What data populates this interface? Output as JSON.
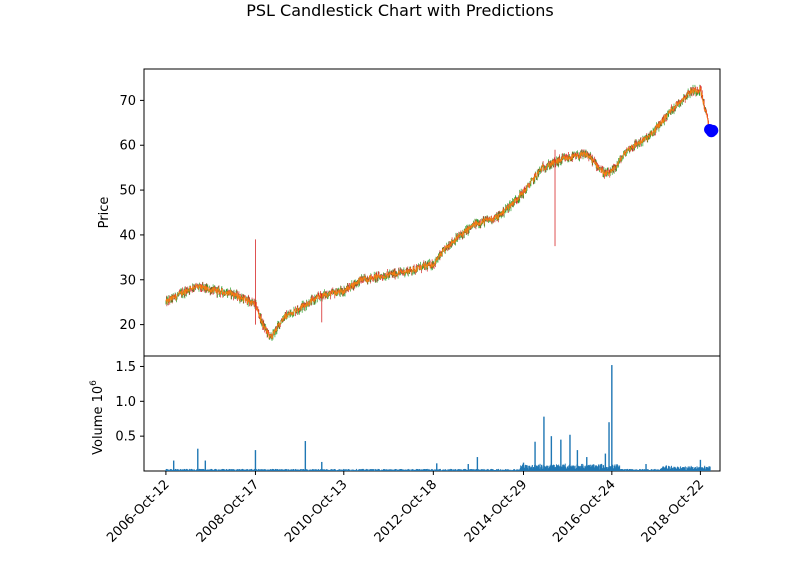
{
  "chart_data": {
    "type": "candlestick",
    "title": "PSL Candlestick Chart with Predictions",
    "price_panel": {
      "ylabel": "Price",
      "ylim": [
        13,
        77
      ],
      "yticks": [
        20,
        30,
        40,
        50,
        60,
        70
      ],
      "series": [
        {
          "date": "2006-Oct-12",
          "price": 25.0
        },
        {
          "date": "2007-Jan-15",
          "price": 26.5
        },
        {
          "date": "2007-Jun-01",
          "price": 28.5
        },
        {
          "date": "2007-Dec-01",
          "price": 27.5
        },
        {
          "date": "2008-Apr-01",
          "price": 27.0
        },
        {
          "date": "2008-Oct-17",
          "price": 24.5
        },
        {
          "date": "2008-Dec-15",
          "price": 20.0
        },
        {
          "date": "2009-Feb-20",
          "price": 17.0
        },
        {
          "date": "2009-Jun-01",
          "price": 21.5
        },
        {
          "date": "2009-Dec-01",
          "price": 24.5
        },
        {
          "date": "2010-Apr-15",
          "price": 26.5
        },
        {
          "date": "2010-Oct-13",
          "price": 27.5
        },
        {
          "date": "2011-Mar-01",
          "price": 30.0
        },
        {
          "date": "2011-Oct-01",
          "price": 31.0
        },
        {
          "date": "2012-Apr-01",
          "price": 32.0
        },
        {
          "date": "2012-Oct-18",
          "price": 33.5
        },
        {
          "date": "2013-Mar-01",
          "price": 38.0
        },
        {
          "date": "2013-Oct-01",
          "price": 42.5
        },
        {
          "date": "2014-Apr-01",
          "price": 44.0
        },
        {
          "date": "2014-Oct-29",
          "price": 49.5
        },
        {
          "date": "2015-Apr-01",
          "price": 55.0
        },
        {
          "date": "2015-Oct-01",
          "price": 57.0
        },
        {
          "date": "2016-Apr-01",
          "price": 58.0
        },
        {
          "date": "2016-Sep-01",
          "price": 53.5
        },
        {
          "date": "2016-Oct-24",
          "price": 54.0
        },
        {
          "date": "2017-Mar-01",
          "price": 59.0
        },
        {
          "date": "2017-Sep-01",
          "price": 62.0
        },
        {
          "date": "2018-Mar-01",
          "price": 68.0
        },
        {
          "date": "2018-Aug-01",
          "price": 72.0
        },
        {
          "date": "2018-Oct-22",
          "price": 72.5
        },
        {
          "date": "2019-Jan-10",
          "price": 63.0
        }
      ],
      "spikes": [
        {
          "date": "2008-Oct-17",
          "high": 39.0,
          "low": 20.0
        },
        {
          "date": "2010-Apr-15",
          "high": 27.0,
          "low": 20.5
        },
        {
          "date": "2015-Jul-15",
          "high": 59.0,
          "low": 37.5
        }
      ],
      "predictions": [
        {
          "date": "2019-Jan-05",
          "price": 63.5
        },
        {
          "date": "2019-Jan-20",
          "price": 63.0
        },
        {
          "date": "2019-Feb-01",
          "price": 63.3
        }
      ],
      "colors": {
        "up": "#2ca02c",
        "down": "#d62728",
        "line": "#ff7f0e",
        "prediction": "#0000ff"
      }
    },
    "volume_panel": {
      "ylabel": "Volume",
      "ylabel_exponent": "10",
      "ylabel_exponent_power": "6",
      "ylim": [
        0,
        1.65
      ],
      "yticks": [
        "0.5",
        "1.0",
        "1.5"
      ],
      "ytick_values": [
        0.5,
        1.0,
        1.5
      ],
      "color": "#1f77b4",
      "spikes": [
        {
          "date": "2006-Dec-15",
          "volume": 0.15
        },
        {
          "date": "2007-Jul-01",
          "volume": 0.32
        },
        {
          "date": "2007-Sep-01",
          "volume": 0.15
        },
        {
          "date": "2008-Oct-17",
          "volume": 0.3
        },
        {
          "date": "2009-Dec-01",
          "volume": 0.43
        },
        {
          "date": "2010-Apr-15",
          "volume": 0.13
        },
        {
          "date": "2012-Nov-15",
          "volume": 0.11
        },
        {
          "date": "2013-Aug-01",
          "volume": 0.1
        },
        {
          "date": "2013-Oct-15",
          "volume": 0.2
        },
        {
          "date": "2014-Oct-29",
          "volume": 0.12
        },
        {
          "date": "2015-Feb-01",
          "volume": 0.42
        },
        {
          "date": "2015-Apr-15",
          "volume": 0.78
        },
        {
          "date": "2015-Jun-15",
          "volume": 0.5
        },
        {
          "date": "2015-Sep-01",
          "volume": 0.45
        },
        {
          "date": "2015-Nov-15",
          "volume": 0.52
        },
        {
          "date": "2016-Jan-15",
          "volume": 0.3
        },
        {
          "date": "2016-Apr-01",
          "volume": 0.2
        },
        {
          "date": "2016-Sep-01",
          "volume": 0.25
        },
        {
          "date": "2016-Oct-01",
          "volume": 0.7
        },
        {
          "date": "2016-Oct-24",
          "volume": 1.52
        },
        {
          "date": "2017-Aug-01",
          "volume": 0.1
        },
        {
          "date": "2018-Jan-15",
          "volume": 0.08
        },
        {
          "date": "2018-Oct-22",
          "volume": 0.16
        }
      ]
    },
    "x_axis": {
      "tick_labels": [
        "2006-Oct-12",
        "2008-Oct-17",
        "2010-Oct-13",
        "2012-Oct-18",
        "2014-Oct-29",
        "2016-Oct-24",
        "2018-Oct-22"
      ],
      "tick_rotation_deg": 45,
      "xlim": [
        "2006-Apr-15",
        "2019-Apr-01"
      ]
    },
    "grid": false,
    "legend": "none"
  }
}
